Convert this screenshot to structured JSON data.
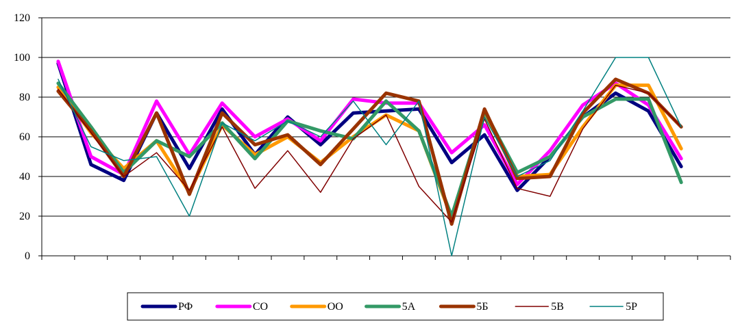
{
  "chart_data": {
    "type": "line",
    "title": "",
    "xlabel": "",
    "ylabel": "",
    "ylim": [
      0,
      120
    ],
    "y_ticks": [
      0,
      20,
      40,
      60,
      80,
      100,
      120
    ],
    "x": [
      1,
      2,
      3,
      4,
      5,
      6,
      7,
      8,
      9,
      10,
      11,
      12,
      13,
      14,
      15,
      16,
      17,
      18,
      19,
      20
    ],
    "x_category_count": 21,
    "grid": "horizontal",
    "legend_position": "bottom",
    "series": [
      {
        "name": "РФ",
        "color": "#000080",
        "values": [
          97,
          46,
          38,
          72,
          44,
          74,
          51,
          70,
          56,
          72,
          73,
          74,
          47,
          61,
          33,
          50,
          70,
          82,
          73,
          45
        ]
      },
      {
        "name": "СО",
        "color": "#FF00FF",
        "values": [
          98,
          50,
          41,
          78,
          51,
          77,
          60,
          69,
          58,
          79,
          77,
          77,
          52,
          66,
          36,
          53,
          76,
          87,
          76,
          49
        ]
      },
      {
        "name": "ОО",
        "color": "#FF9900",
        "values": [
          85,
          62,
          44,
          58,
          32,
          66,
          51,
          60,
          47,
          60,
          71,
          63,
          19,
          72,
          40,
          41,
          65,
          86,
          86,
          54
        ]
      },
      {
        "name": "5А",
        "color": "#339966",
        "values": [
          87,
          65,
          42,
          58,
          50,
          67,
          49,
          68,
          63,
          59,
          78,
          63,
          20,
          73,
          42,
          50,
          70,
          79,
          79,
          37
        ]
      },
      {
        "name": "5Б",
        "color": "#993300",
        "values": [
          83,
          63,
          40,
          72,
          31,
          72,
          56,
          61,
          46,
          64,
          82,
          78,
          16,
          74,
          39,
          40,
          72,
          89,
          82,
          65
        ]
      },
      {
        "name": "5В",
        "color": "#800000",
        "values": [
          84,
          62,
          40,
          52,
          33,
          65,
          34,
          53,
          32,
          59,
          71,
          35,
          17,
          69,
          34,
          30,
          64,
          86,
          82,
          65
        ]
      },
      {
        "name": "5Р",
        "color": "#008080",
        "values": [
          89,
          55,
          48,
          50,
          20,
          67,
          58,
          68,
          60,
          78,
          56,
          78,
          0,
          70,
          40,
          48,
          73,
          100,
          100,
          65
        ]
      }
    ]
  }
}
